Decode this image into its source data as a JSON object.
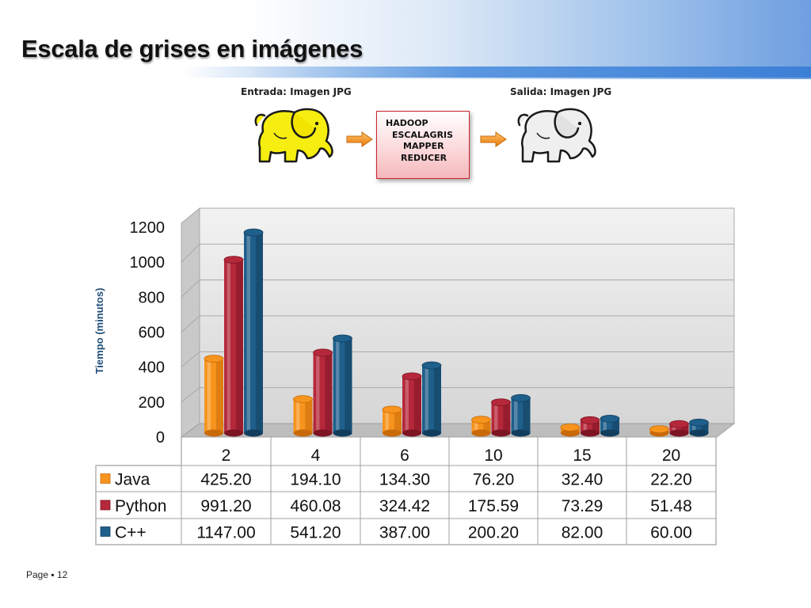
{
  "slide": {
    "title": "Escala de grises en imágenes",
    "footer": "Page ▪ 12"
  },
  "diagram": {
    "input_label": "Entrada: Imagen JPG",
    "output_label": "Salida: Imagen JPG",
    "process_lines": [
      "HADOOP",
      "ESCALAGRIS",
      "MAPPER",
      "REDUCER"
    ],
    "input_icon": "yellow-elephant-icon",
    "output_icon": "gray-elephant-icon",
    "arrow_icon": "orange-arrow-icon"
  },
  "chart_data": {
    "type": "bar",
    "title": "",
    "xlabel": "",
    "ylabel": "Tiempo (minutos)",
    "ylim": [
      0,
      1200
    ],
    "yticks": [
      0,
      200,
      400,
      600,
      800,
      1000,
      1200
    ],
    "grid": true,
    "categories": [
      "2",
      "4",
      "6",
      "10",
      "15",
      "20"
    ],
    "series": [
      {
        "name": "Java",
        "color": "#f7941d",
        "dark": "#c96a0a",
        "values": [
          425.2,
          194.1,
          134.3,
          76.2,
          32.4,
          22.2
        ],
        "labels": [
          "425.20",
          "194.10",
          "134.30",
          "76.20",
          "32.40",
          "22.20"
        ]
      },
      {
        "name": "Python",
        "color": "#b5283a",
        "dark": "#7d1424",
        "values": [
          991.2,
          460.08,
          324.42,
          175.59,
          73.29,
          51.48
        ],
        "labels": [
          "991.20",
          "460.08",
          "324.42",
          "175.59",
          "73.29",
          "51.48"
        ]
      },
      {
        "name": "C++",
        "color": "#1f5f8b",
        "dark": "#123e5e",
        "values": [
          1147.0,
          541.2,
          387.0,
          200.2,
          82.0,
          60.0
        ],
        "labels": [
          "1147.00",
          "541.20",
          "387.00",
          "200.20",
          "82.00",
          "60.00"
        ]
      }
    ],
    "legend": "data-table"
  }
}
